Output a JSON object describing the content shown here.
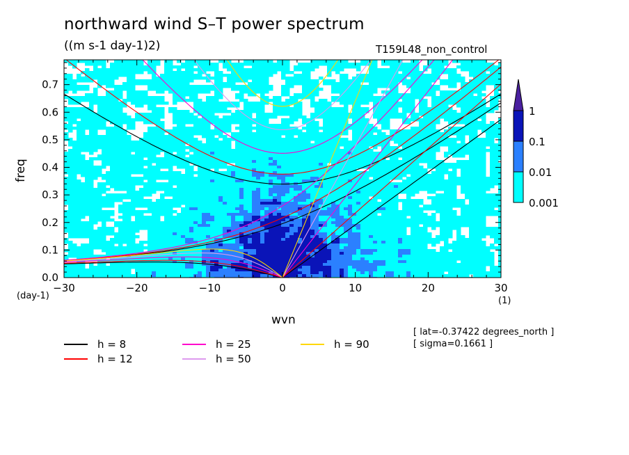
{
  "title": "northward wind S–T power spectrum",
  "units": "((m s-1 day-1)2)",
  "run_label": "T159L48_non_control",
  "info": [
    "[ lat=-0.37422 degrees_north ]",
    "[ sigma=0.1661 ]"
  ],
  "chart_data": {
    "type": "heatmap",
    "xlabel": "wvn",
    "ylabel": "freq",
    "x_unit": "(1)",
    "y_unit": "(day-1)",
    "xlim": [
      -30,
      30
    ],
    "ylim": [
      0,
      0.79
    ],
    "xticks": [
      -30,
      -20,
      -10,
      0,
      10,
      20,
      30
    ],
    "yticks": [
      0.0,
      0.1,
      0.2,
      0.3,
      0.4,
      0.5,
      0.6,
      0.7
    ],
    "colorbar": {
      "levels": [
        "0.001",
        "0.01",
        "0.1",
        "1"
      ],
      "colors": [
        "#00ffff",
        "#2b80ff",
        "#0a14b8",
        "#4a20a0"
      ],
      "extend": "max"
    },
    "power_peak": {
      "wvn_range": [
        -10,
        10
      ],
      "freq_range": [
        0.0,
        0.4
      ],
      "note_level": "0.1"
    },
    "dispersion_curves": [
      {
        "name": "h =  8",
        "h": 8,
        "color": "#000000"
      },
      {
        "name": "h = 12",
        "h": 12,
        "color": "#ff0000"
      },
      {
        "name": "h = 25",
        "h": 25,
        "color": "#ff00cc"
      },
      {
        "name": "h = 50",
        "h": 50,
        "color": "#dd99ee"
      },
      {
        "name": "h = 90",
        "h": 90,
        "color": "#ffd700"
      }
    ],
    "grid": false,
    "legend_placement": "bottom"
  }
}
